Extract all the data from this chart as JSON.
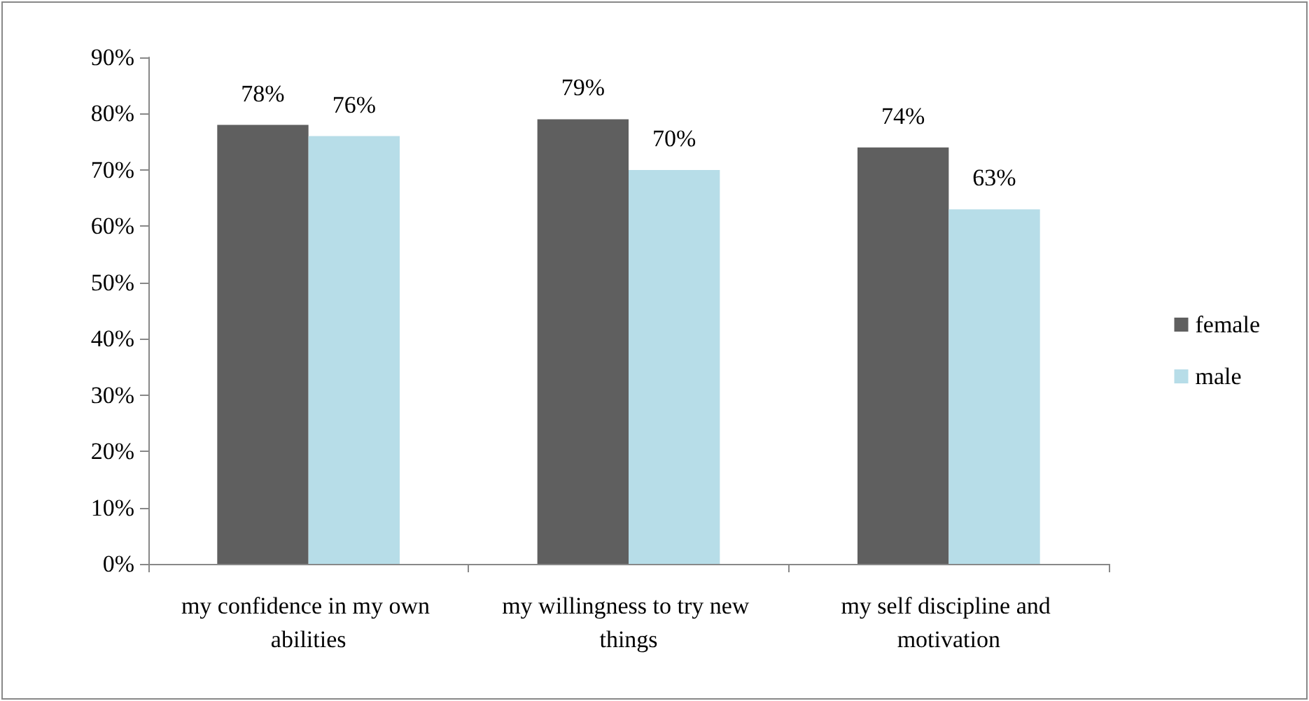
{
  "chart_data": {
    "type": "bar",
    "categories": [
      "my confidence in my own abilities",
      "my willingness to try new things",
      "my self discipline and motivation"
    ],
    "series": [
      {
        "name": "female",
        "color": "#5f5f5f",
        "values": [
          78,
          79,
          74
        ],
        "value_labels": [
          "78%",
          "79%",
          "74%"
        ]
      },
      {
        "name": "male",
        "color": "#b7dde8",
        "values": [
          76,
          70,
          63
        ],
        "value_labels": [
          "76%",
          "70%",
          "63%"
        ]
      }
    ],
    "ylim": [
      0,
      90
    ],
    "yticks": [
      {
        "value": 0,
        "label": "0%"
      },
      {
        "value": 10,
        "label": "10%"
      },
      {
        "value": 20,
        "label": "20%"
      },
      {
        "value": 30,
        "label": "30%"
      },
      {
        "value": 40,
        "label": "40%"
      },
      {
        "value": 50,
        "label": "50%"
      },
      {
        "value": 60,
        "label": "60%"
      },
      {
        "value": 70,
        "label": "70%"
      },
      {
        "value": 80,
        "label": "80%"
      },
      {
        "value": 90,
        "label": "90%"
      }
    ],
    "grid": false,
    "legend": "right"
  }
}
